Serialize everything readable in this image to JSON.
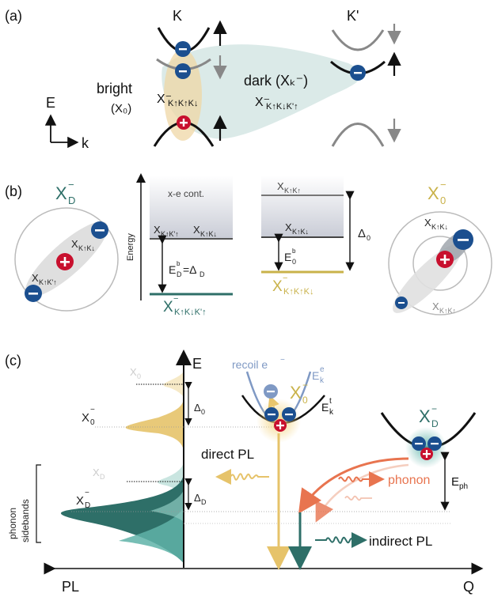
{
  "panel_a": {
    "label": "(a)",
    "valley_k": "K",
    "valley_kprime": "K'",
    "bright_word": "bright",
    "bright_symbol": "(X₀)",
    "bright_state": "X⁻",
    "bright_sub": "K↑K↑K↓",
    "dark_word": "dark (Xₖ⁻)",
    "dark_state": "X⁻",
    "dark_sub": "K↑K↓K'↑",
    "axis_e": "E",
    "axis_k": "k"
  },
  "panel_b": {
    "label": "(b)",
    "xd_title": "X",
    "xd_title_sub": "D",
    "x0_title": "X",
    "x0_title_sub": "0",
    "energy_axis": "Energy",
    "continuum": "x-e cont.",
    "left_lvl_1": "X",
    "left_lvl_1_sub": "K↑K'↑",
    "left_lvl_2": "X",
    "left_lvl_2_sub": "K↑K↓",
    "ed_eq": "E",
    "ed_eq_sup": "b",
    "ed_eq_sub": "D",
    "ed_eq_rest": "=Δ",
    "ed_eq_rest_sub": "D",
    "dark_trion": "X",
    "dark_trion_sub": "K↑K↓K'↑",
    "right_lvl_top": "X",
    "right_lvl_top_sub": "K↑K↑",
    "right_lvl_mid": "X",
    "right_lvl_mid_sub": "K↑K↓",
    "e0": "E",
    "e0_sup": "b",
    "e0_sub": "0",
    "delta0": "Δ",
    "delta0_sub": "0",
    "bright_trion": "X",
    "bright_trion_sub": "K↑K↑K↓",
    "xd_inner_1": "X",
    "xd_inner_1_sub": "K↑K↓",
    "xd_inner_2": "X",
    "xd_inner_2_sub": "K↑K'↑",
    "x0_inner_1": "X",
    "x0_inner_1_sub": "K↑K↓",
    "x0_inner_2": "X",
    "x0_inner_2_sub": "K↑K↑"
  },
  "panel_c": {
    "label": "(c)",
    "axis_e": "E",
    "x0_small": "X",
    "x0_small_sub": "0",
    "x0_trion": "X",
    "x0_trion_sub": "0",
    "xd_small": "X",
    "xd_small_sub": "D",
    "xd_trion": "X",
    "xd_trion_sub": "D",
    "delta0": "Δ",
    "delta0_sub": "0",
    "deltad": "Δ",
    "deltad_sub": "D",
    "phonon_sidebands_1": "phonon",
    "phonon_sidebands_2": "sidebands",
    "recoil": "recoil e",
    "eke": "E",
    "eke_sup": "e",
    "eke_sub": "k",
    "ekt": "E",
    "ekt_sup": "t",
    "ekt_sub": "k",
    "center_x0": "X",
    "center_x0_sub": "0",
    "right_xd": "X",
    "right_xd_sub": "D",
    "direct_pl": "direct PL",
    "phonon": "phonon",
    "eph": "E",
    "eph_sub": "ph",
    "indirect_pl": "indirect PL",
    "axis_pl": "PL",
    "axis_q": "Q"
  },
  "colors": {
    "electron": "#1b4f8f",
    "hole": "#c8102e",
    "teal": "#2e6f68",
    "gold": "#e6c36a",
    "orange": "#e8744f",
    "recoil": "#7f99c4"
  }
}
